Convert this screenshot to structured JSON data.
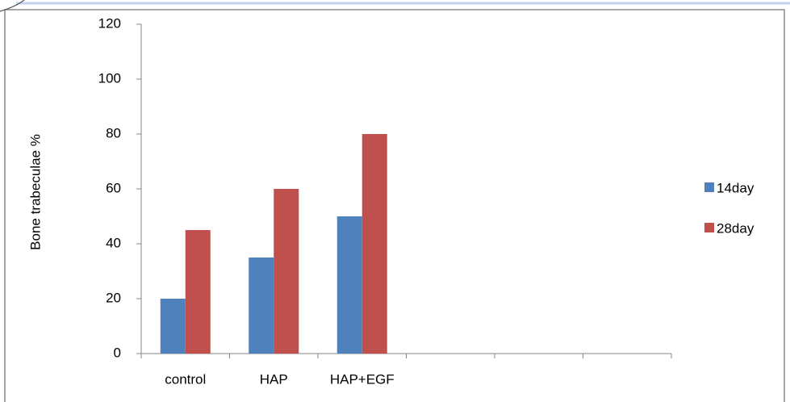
{
  "chart_data": {
    "type": "bar",
    "y_label": "Bone trabeculae %",
    "categories": [
      "control",
      "HAP",
      "HAP+EGF",
      null,
      null,
      null
    ],
    "series": [
      {
        "name": "14day",
        "color": "#4f81bd",
        "values": [
          20,
          35,
          50,
          null,
          null,
          null
        ]
      },
      {
        "name": "28day",
        "color": "#c0504d",
        "values": [
          45,
          60,
          80,
          null,
          null,
          null
        ]
      }
    ],
    "ylim": [
      0,
      120
    ],
    "yticks": [
      0,
      20,
      40,
      60,
      80,
      100,
      120
    ],
    "legend": "right"
  }
}
